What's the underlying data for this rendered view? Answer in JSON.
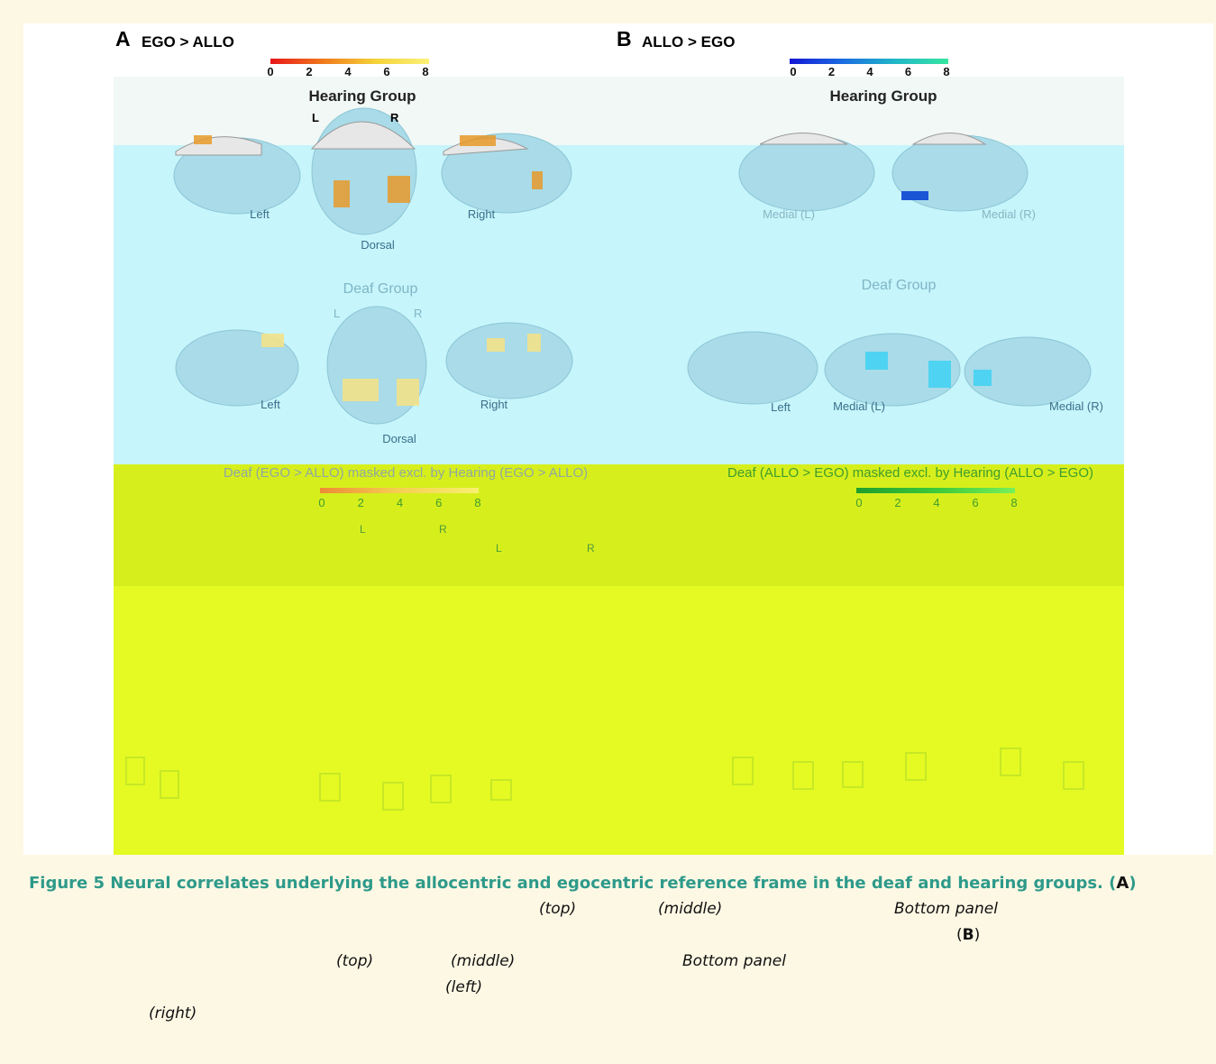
{
  "panels": [
    {
      "label": "A",
      "title": "EGO > ALLO",
      "colorbar_ticks": [
        0,
        2,
        4,
        6,
        8
      ],
      "hearing": {
        "title": "Hearing Group",
        "sides": [
          "L",
          "R"
        ],
        "views": [
          "Left",
          "Dorsal",
          "Right"
        ]
      },
      "deaf": {
        "title": "Deaf Group",
        "sides": [
          "L",
          "R"
        ],
        "views": [
          "Left",
          "Dorsal",
          "Right"
        ]
      },
      "masked": {
        "title": "Deaf (EGO > ALLO) masked excl. by Hearing (EGO > ALLO)",
        "colorbar_ticks": [
          0,
          2,
          4,
          6,
          8
        ],
        "sides": [
          "L",
          "R",
          "L",
          "R"
        ]
      }
    },
    {
      "label": "B",
      "title": "ALLO > EGO",
      "colorbar_ticks": [
        0,
        2,
        4,
        6,
        8
      ],
      "hearing": {
        "title": "Hearing Group",
        "views": [
          "Medial (L)",
          "Medial (R)"
        ]
      },
      "deaf": {
        "title": "Deaf Group",
        "views": [
          "Left",
          "Medial (L)",
          "Medial (R)"
        ]
      },
      "masked": {
        "title": "Deaf (ALLO > EGO) masked excl. by Hearing (ALLO > EGO)",
        "colorbar_ticks": [
          0,
          2,
          4,
          6,
          8
        ]
      }
    }
  ],
  "caption": {
    "title": "Figure 5 Neural correlates underlying the allocentric and egocentric reference frame in the deaf and hearing groups.",
    "panel_a": "A",
    "panel_b": "B",
    "fragments": [
      "(top)",
      "(middle)",
      "Bottom panel",
      "(top)",
      "(middle)",
      "Bottom panel",
      "(left)",
      "(right)"
    ]
  }
}
